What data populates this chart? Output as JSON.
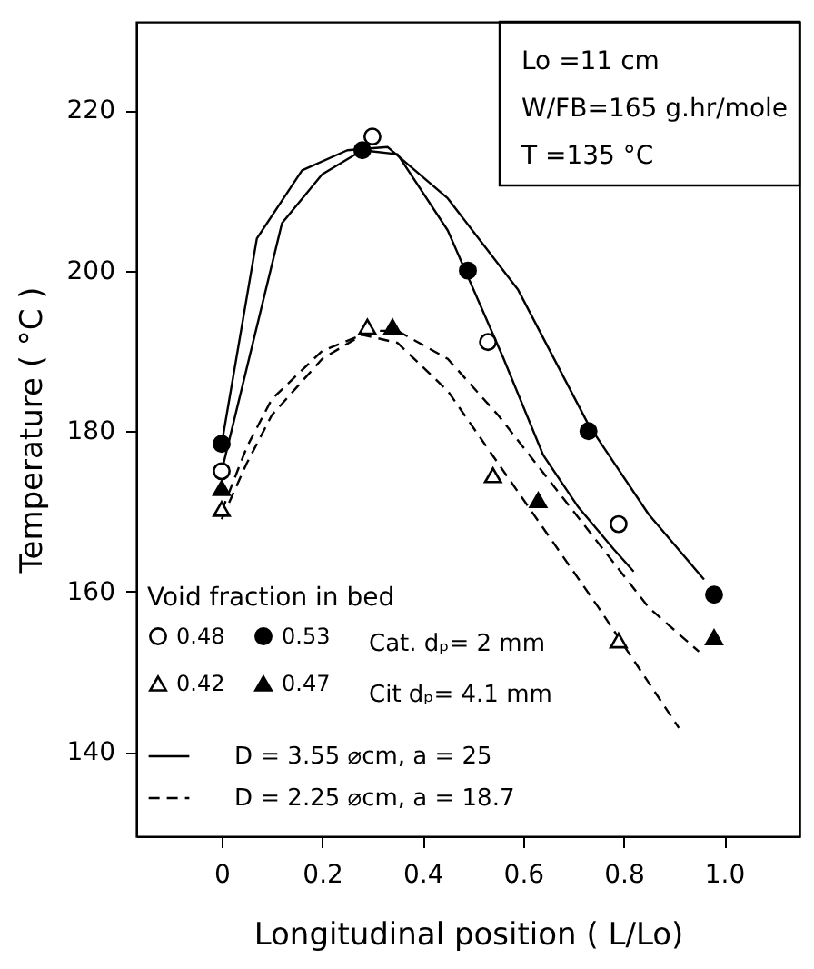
{
  "chart_data": {
    "type": "scatter",
    "xlabel": "Longitudinal position  ( L/Lo)",
    "ylabel": "Temperature  ( °C )",
    "xlim": [
      -0.17,
      1.15
    ],
    "ylim": [
      129.5,
      231
    ],
    "xticks": [
      0,
      0.2,
      0.4,
      0.6,
      0.8,
      {
        "value": 1,
        "label": "1.0"
      }
    ],
    "yticks": [
      140,
      160,
      180,
      200,
      220
    ],
    "grid": false,
    "legend": "bottom left",
    "legend_title": "Void fraction in bed",
    "annotations": [
      "Lo =11 cm",
      "W/FB=165  g.hr/mole",
      "T  =135 °C",
      "Cat. dₚ= 2  mm",
      "Cit  dₚ= 4.1 mm"
    ],
    "series": [
      {
        "name": "0.48",
        "marker": "circle-open",
        "color": "#000000",
        "x": [
          0,
          0.3,
          0.53,
          0.79
        ],
        "values": [
          175,
          216.7,
          191.1,
          168.4
        ]
      },
      {
        "name": "0.42",
        "marker": "triangle-open",
        "color": "#000000",
        "x": [
          0,
          0.29,
          0.54,
          0.79
        ],
        "values": [
          170.3,
          193,
          174.5,
          153.9
        ]
      },
      {
        "name": "0.53",
        "marker": "circle",
        "color": "#000000",
        "x": [
          0,
          0.28,
          0.49,
          0.73,
          0.98
        ],
        "values": [
          178.4,
          215,
          200,
          180,
          159.6
        ]
      },
      {
        "name": "0.47",
        "marker": "triangle",
        "color": "#000000",
        "x": [
          0,
          0.34,
          0.63,
          0.98
        ],
        "values": [
          172.9,
          193,
          171.4,
          154.3
        ]
      },
      {
        "name": "D = 3.55 ⌀cm, a = 25",
        "type": "line",
        "line_style": "solid",
        "color": "#000000",
        "x": [
          0,
          0.07,
          0.16,
          0.25,
          0.33,
          0.45,
          0.59,
          0.73,
          0.85,
          0.96
        ],
        "values": [
          178.4,
          204,
          212.5,
          215,
          215.4,
          209,
          197.6,
          180.8,
          169.6,
          161.5
        ]
      },
      {
        "type": "line",
        "line_style": "solid",
        "color": "#000000",
        "x": [
          0,
          0.12,
          0.2,
          0.28,
          0.35,
          0.45,
          0.56,
          0.64,
          0.71,
          0.78,
          0.82
        ],
        "values": [
          175,
          205.9,
          212,
          215,
          214.5,
          205,
          189.2,
          177,
          170.5,
          165.3,
          162.5
        ]
      },
      {
        "name": "D = 2.25 ⌀cm, a = 18.7",
        "type": "line",
        "line_style": "dashed",
        "color": "#000000",
        "x": [
          0,
          0.05,
          0.1,
          0.2,
          0.3,
          0.35,
          0.45,
          0.55,
          0.65,
          0.75,
          0.85,
          0.95
        ],
        "values": [
          170,
          178,
          184,
          190,
          192.5,
          192.5,
          189,
          182,
          174,
          166,
          158,
          152.5
        ]
      },
      {
        "type": "line",
        "line_style": "dashed",
        "color": "#000000",
        "x": [
          0,
          0.05,
          0.1,
          0.2,
          0.28,
          0.35,
          0.45,
          0.55,
          0.65,
          0.75,
          0.91
        ],
        "values": [
          169,
          176,
          182,
          189,
          192,
          191,
          185,
          176,
          167,
          158,
          143
        ]
      }
    ]
  }
}
